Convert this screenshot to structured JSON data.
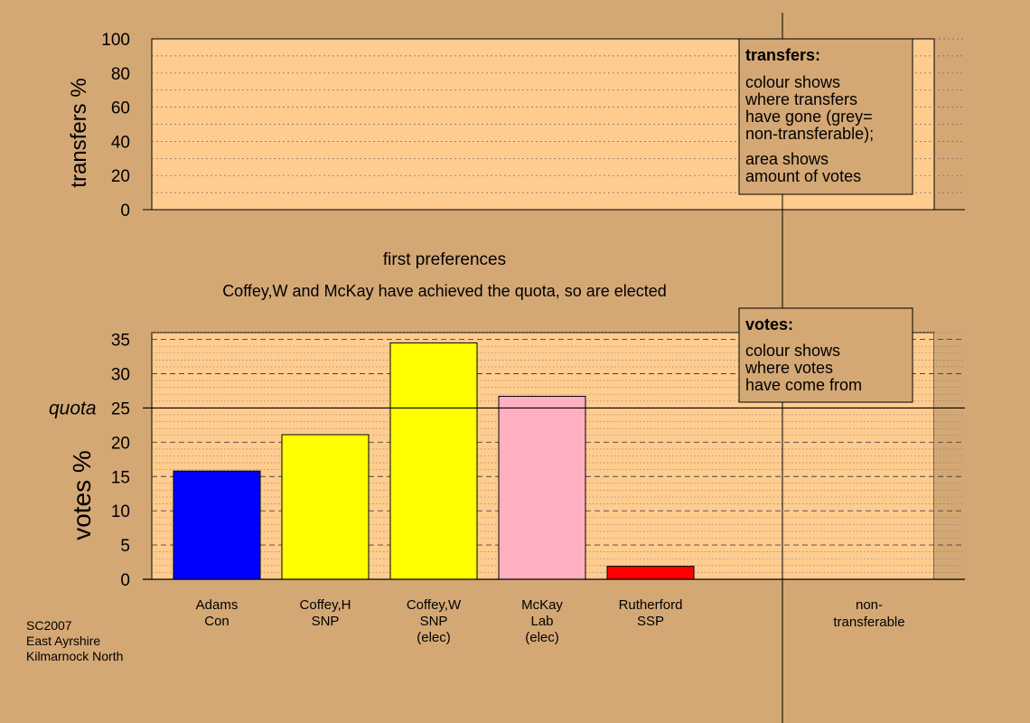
{
  "chart_data": [
    {
      "type": "bar",
      "ylabel": "transfers %",
      "ylim": [
        0,
        100
      ],
      "yticks": [
        0,
        20,
        40,
        60,
        80,
        100
      ],
      "values": [],
      "legend": {
        "title": "transfers:",
        "lines": [
          "colour shows",
          "where transfers",
          "have gone (grey=",
          "non-transferable);"
        ],
        "lines2": [
          "area shows",
          "amount of votes"
        ]
      }
    },
    {
      "type": "bar",
      "title": "first preferences",
      "subtitle": "Coffey,W and McKay have achieved the quota, so are elected",
      "ylabel": "votes %",
      "ylim": [
        0,
        36
      ],
      "yticks": [
        0,
        5,
        10,
        15,
        20,
        25,
        30,
        35
      ],
      "quota": 25,
      "quota_label": "quota",
      "categories": [
        [
          "Adams",
          "Con"
        ],
        [
          "Coffey,H",
          "SNP"
        ],
        [
          "Coffey,W",
          "SNP",
          "(elec)"
        ],
        [
          "McKay",
          "Lab",
          "(elec)"
        ],
        [
          "Rutherford",
          "SSP"
        ]
      ],
      "values": [
        15.8,
        21.1,
        34.5,
        26.7,
        1.9
      ],
      "colors": [
        "#0000ff",
        "#ffff00",
        "#ffff00",
        "#ffb0c0",
        "#ff0000"
      ],
      "extra_category": [
        "non-",
        "transferable"
      ],
      "legend": {
        "title": "votes:",
        "lines": [
          "colour shows",
          "where votes",
          "have come from"
        ]
      }
    }
  ],
  "footer": [
    "SC2007",
    "East Ayrshire",
    "Kilmarnock North"
  ],
  "colors": {
    "background": "#d4a875",
    "plot_bg": "#ffcc8f",
    "panel_bg": "#d4a875"
  }
}
